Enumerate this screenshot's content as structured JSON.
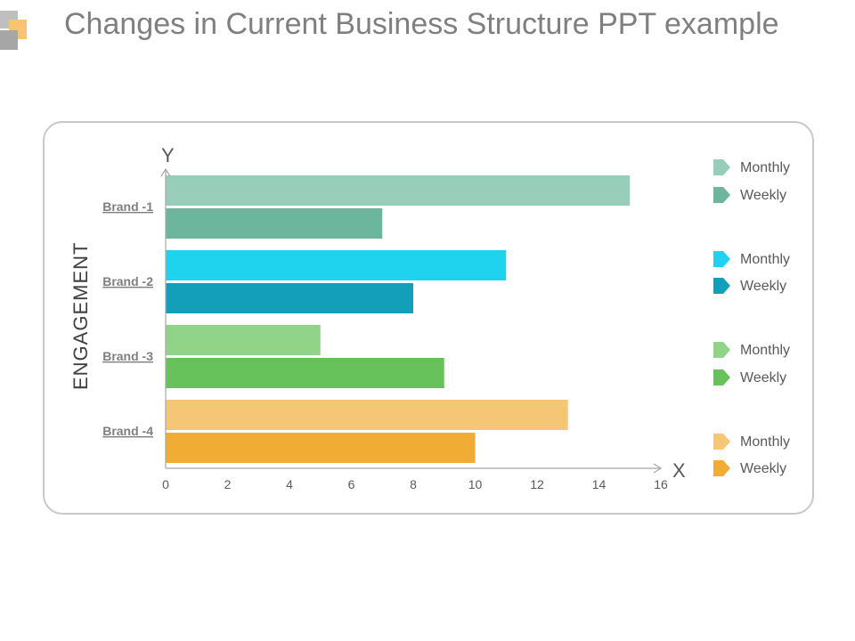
{
  "header": {
    "title": "Changes in Current Business Structure PPT example",
    "logo_colors": [
      "#bfbfbf",
      "#f8c471",
      "#a6a6a6"
    ]
  },
  "chart_data": {
    "type": "bar",
    "orientation": "horizontal",
    "ylabel": "ENGAGEMENT",
    "y_axis_letter": "Y",
    "x_axis_letter": "X",
    "xlim": [
      0,
      16
    ],
    "xticks": [
      0,
      2,
      4,
      6,
      8,
      10,
      12,
      14,
      16
    ],
    "categories": [
      "Brand -1",
      "Brand -2",
      "Brand -3",
      "Brand -4"
    ],
    "series": [
      {
        "name": "Monthly",
        "values": [
          15,
          11,
          5,
          13
        ]
      },
      {
        "name": "Weekly",
        "values": [
          7,
          8,
          9,
          10
        ]
      }
    ],
    "colors": {
      "Monthly": [
        "#98cdb9",
        "#1fd3ee",
        "#92d38a",
        "#f5c675"
      ],
      "Weekly": [
        "#6bb69c",
        "#139fba",
        "#67c25b",
        "#f0ac34"
      ]
    },
    "legend": [
      {
        "label": "Monthly",
        "color": "#98cdb9"
      },
      {
        "label": "Weekly",
        "color": "#6bb69c"
      },
      {
        "label": "Monthly",
        "color": "#1fd3ee"
      },
      {
        "label": "Weekly",
        "color": "#139fba"
      },
      {
        "label": "Monthly",
        "color": "#92d38a"
      },
      {
        "label": "Weekly",
        "color": "#67c25b"
      },
      {
        "label": "Monthly",
        "color": "#f5c675"
      },
      {
        "label": "Weekly",
        "color": "#f0ac34"
      }
    ],
    "legend_position": "right"
  }
}
